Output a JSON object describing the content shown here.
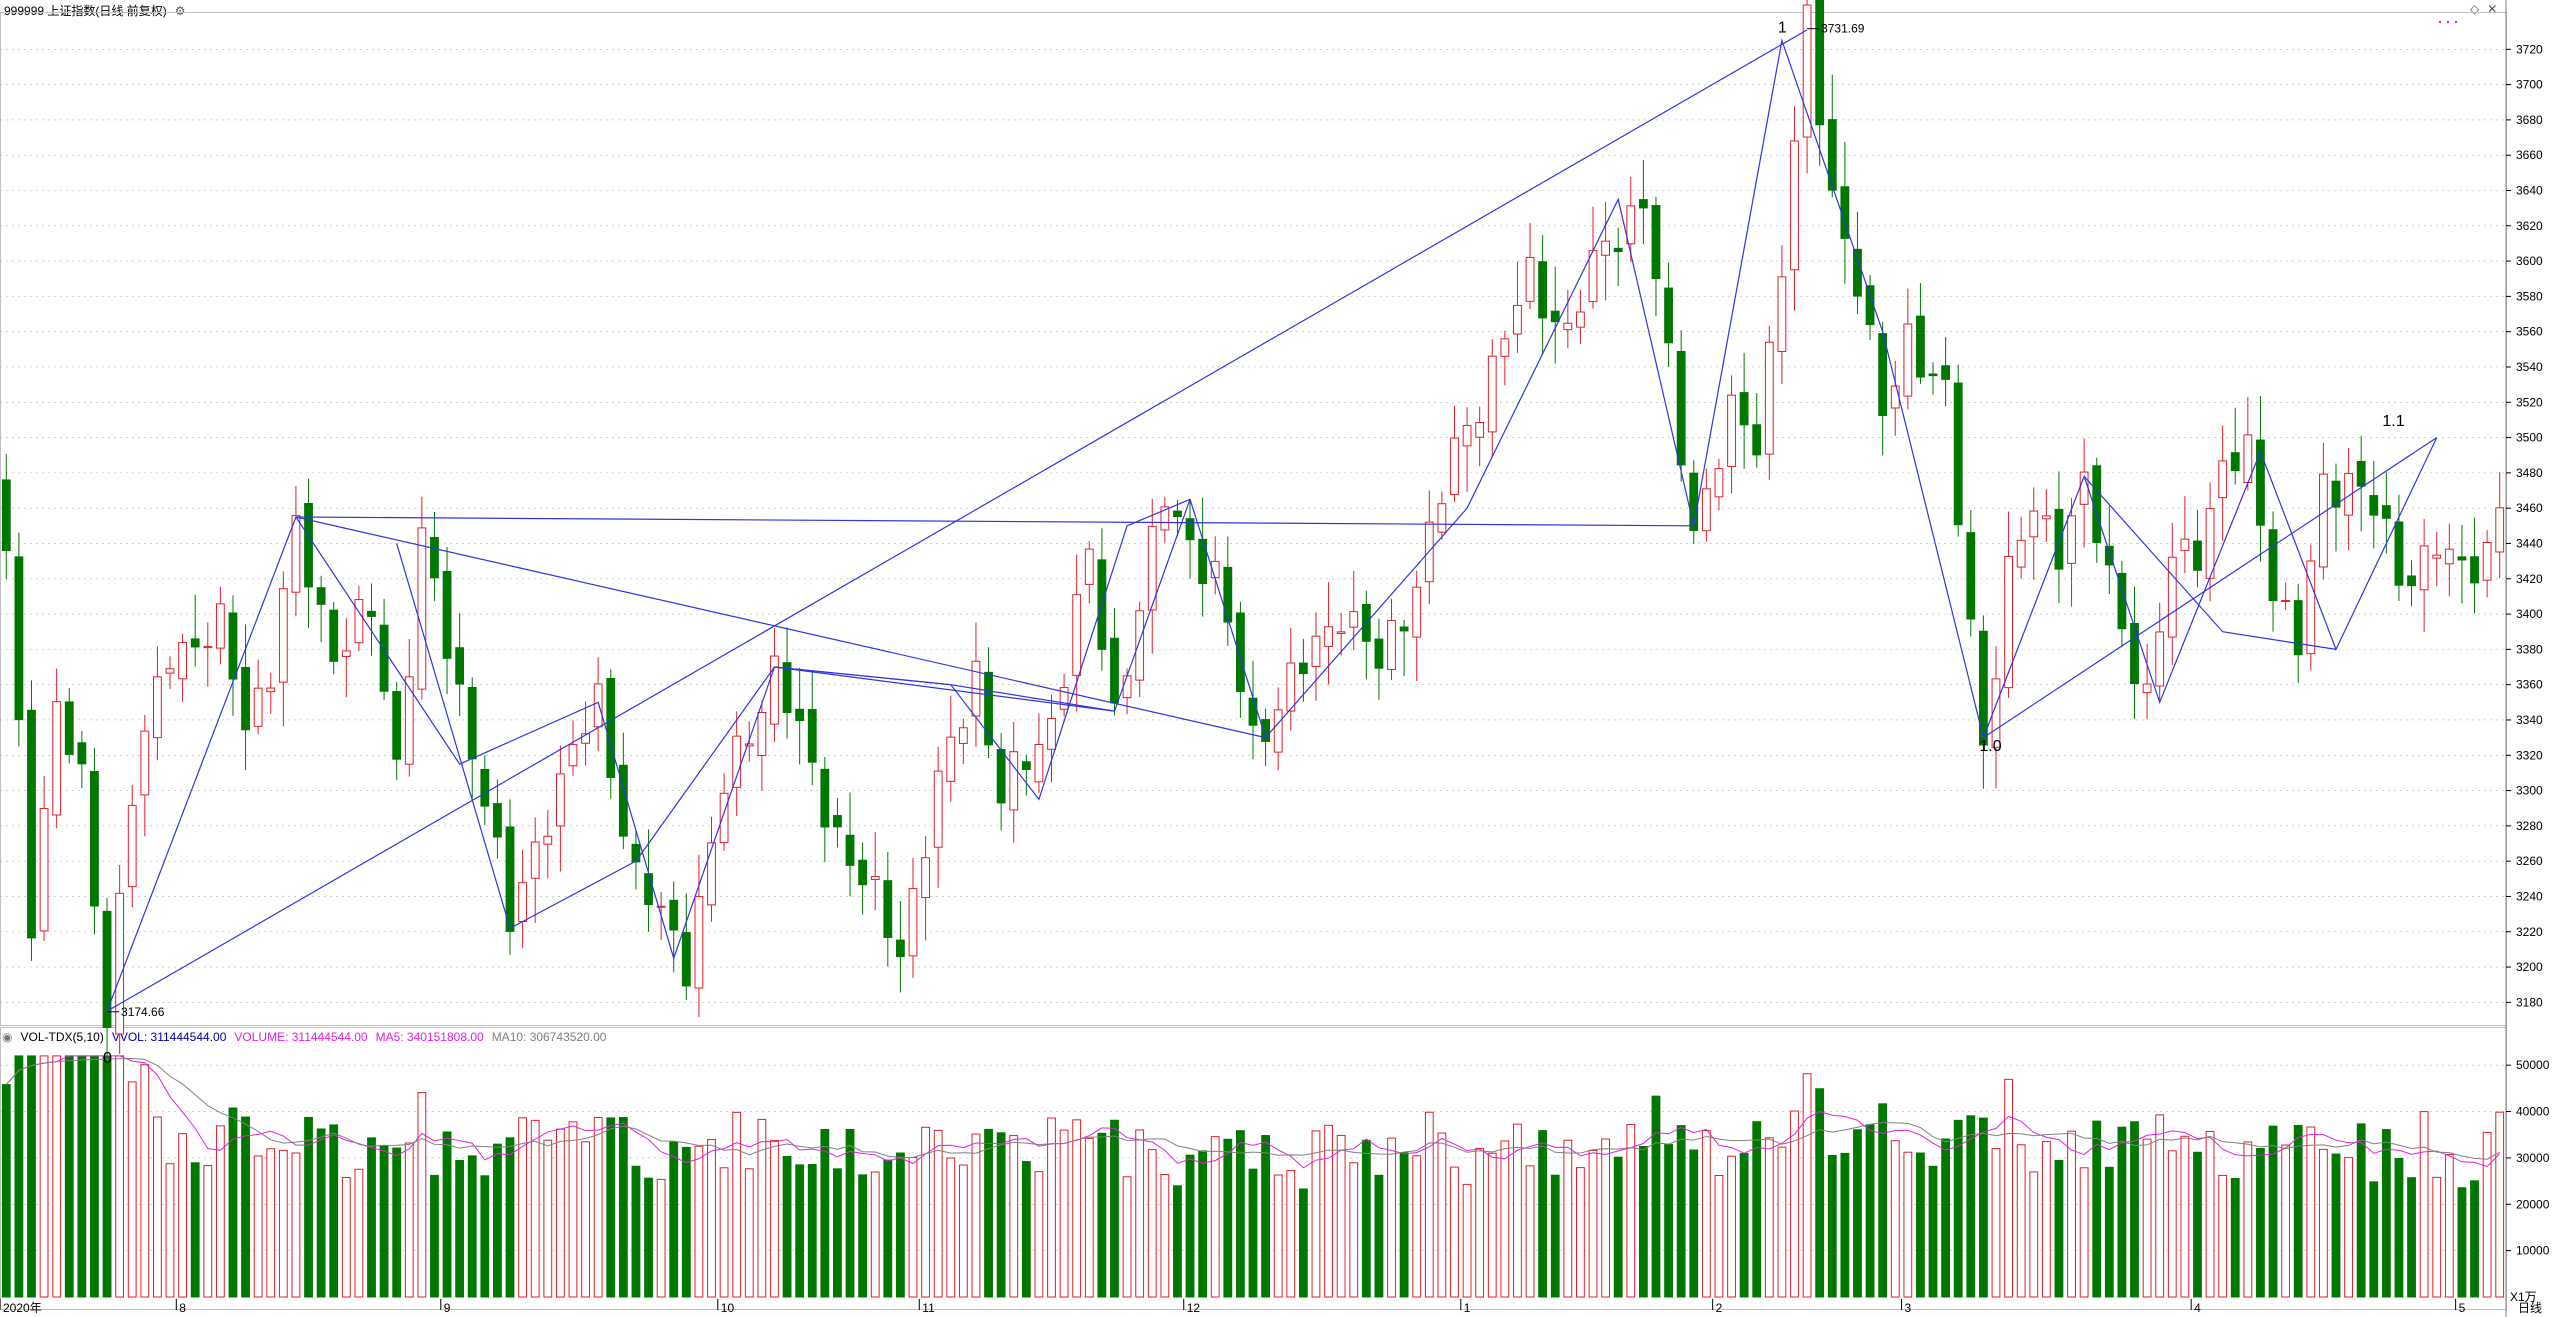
{
  "header": {
    "title": "999999 上证指数(日线 前复权)",
    "settings_icon": "circle-gear-icon"
  },
  "volume_header": {
    "indicator": "VOL-TDX(5,10)",
    "vvol": "VVOL: 311444544.00",
    "volume": "VOLUME: 311444544.00",
    "ma5": "MA5: 340151808.00",
    "ma10": "MA10: 306743520.00"
  },
  "colors": {
    "up": "#e0202a",
    "down": "#007800",
    "wave": "#2f36e0",
    "ma5": "#e020e0",
    "ma10": "#808080",
    "vvol": "#0000a0",
    "grid": "#b8b8b8"
  },
  "price_axis_labels": [
    "3720",
    "3700",
    "3680",
    "3660",
    "3640",
    "3620",
    "3600",
    "3580",
    "3560",
    "3540",
    "3520",
    "3500",
    "3480",
    "3460",
    "3440",
    "3420",
    "3400",
    "3380",
    "3360",
    "3340",
    "3320",
    "3300",
    "3280",
    "3260",
    "3240",
    "3220",
    "3200",
    "3180"
  ],
  "volume_axis_labels": [
    "50000",
    "40000",
    "30000",
    "20000",
    "10000"
  ],
  "volume_unit": "X1万",
  "x_labels": [
    {
      "label": "2020年",
      "i": 0
    },
    {
      "label": "8",
      "i": 14
    },
    {
      "label": "9",
      "i": 35
    },
    {
      "label": "10",
      "i": 57
    },
    {
      "label": "11",
      "i": 73
    },
    {
      "label": "12",
      "i": 94
    },
    {
      "label": "1",
      "i": 116
    },
    {
      "label": "2",
      "i": 136
    },
    {
      "label": "3",
      "i": 151
    },
    {
      "label": "4",
      "i": 174
    },
    {
      "label": "5",
      "i": 195
    }
  ],
  "period_label": "日线",
  "wave_labels": [
    {
      "text": "0",
      "i": 8,
      "price": 3158
    },
    {
      "text": "1",
      "i": 141,
      "price": 3725
    },
    {
      "text": "1.0",
      "i": 157,
      "price": 3318
    },
    {
      "text": "1.1",
      "i": 189,
      "price": 3502
    }
  ],
  "extreme_labels": [
    {
      "text": "3174.66",
      "i": 8,
      "price": 3174.66
    },
    {
      "text": "3731.69",
      "i": 143,
      "price": 3731.69
    }
  ],
  "chart_data": {
    "type": "candlestick",
    "title": "999999 上证指数(日线 前复权)",
    "ylim": [
      3170,
      3740
    ],
    "n": 199,
    "anchors": [
      [
        0,
        3430
      ],
      [
        2,
        3230
      ],
      [
        4,
        3350
      ],
      [
        6,
        3300
      ],
      [
        8,
        3175
      ],
      [
        10,
        3300
      ],
      [
        13,
        3380
      ],
      [
        17,
        3390
      ],
      [
        19,
        3340
      ],
      [
        21,
        3370
      ],
      [
        23,
        3445
      ],
      [
        26,
        3380
      ],
      [
        29,
        3400
      ],
      [
        31,
        3315
      ],
      [
        33,
        3443
      ],
      [
        35,
        3380
      ],
      [
        38,
        3300
      ],
      [
        40,
        3222
      ],
      [
        43,
        3290
      ],
      [
        47,
        3350
      ],
      [
        50,
        3250
      ],
      [
        54,
        3205
      ],
      [
        57,
        3300
      ],
      [
        61,
        3370
      ],
      [
        64,
        3310
      ],
      [
        67,
        3260
      ],
      [
        71,
        3212
      ],
      [
        74,
        3300
      ],
      [
        77,
        3370
      ],
      [
        79,
        3295
      ],
      [
        83,
        3340
      ],
      [
        86,
        3430
      ],
      [
        88,
        3345
      ],
      [
        92,
        3465
      ],
      [
        96,
        3420
      ],
      [
        99,
        3330
      ],
      [
        103,
        3370
      ],
      [
        106,
        3405
      ],
      [
        109,
        3370
      ],
      [
        112,
        3420
      ],
      [
        115,
        3490
      ],
      [
        118,
        3540
      ],
      [
        121,
        3590
      ],
      [
        124,
        3560
      ],
      [
        127,
        3610
      ],
      [
        130,
        3635
      ],
      [
        132,
        3540
      ],
      [
        134,
        3450
      ],
      [
        137,
        3510
      ],
      [
        139,
        3500
      ],
      [
        141,
        3600
      ],
      [
        143,
        3731
      ],
      [
        145,
        3640
      ],
      [
        147,
        3590
      ],
      [
        149,
        3510
      ],
      [
        151,
        3560
      ],
      [
        154,
        3520
      ],
      [
        157,
        3330
      ],
      [
        159,
        3420
      ],
      [
        161,
        3460
      ],
      [
        163,
        3440
      ],
      [
        165,
        3470
      ],
      [
        167,
        3420
      ],
      [
        170,
        3350
      ],
      [
        172,
        3430
      ],
      [
        174,
        3440
      ],
      [
        176,
        3480
      ],
      [
        178,
        3490
      ],
      [
        180,
        3420
      ],
      [
        182,
        3380
      ],
      [
        184,
        3470
      ],
      [
        186,
        3480
      ],
      [
        188,
        3460
      ],
      [
        190,
        3420
      ],
      [
        193,
        3440
      ],
      [
        195,
        3420
      ],
      [
        197,
        3440
      ],
      [
        198,
        3462
      ]
    ],
    "wave_lines": [
      [
        [
          8,
          3175
        ],
        [
          23,
          3455
        ],
        [
          36,
          3315
        ],
        [
          47,
          3350
        ],
        [
          53,
          3205
        ],
        [
          61,
          3370
        ],
        [
          75,
          3360
        ],
        [
          82,
          3295
        ],
        [
          89,
          3450
        ],
        [
          94,
          3465
        ],
        [
          100,
          3330
        ],
        [
          116,
          3460
        ],
        [
          128,
          3635
        ],
        [
          134,
          3450
        ],
        [
          141,
          3725
        ],
        [
          149,
          3560
        ],
        [
          157,
          3330
        ],
        [
          165,
          3478
        ],
        [
          171,
          3350
        ],
        [
          179,
          3492
        ],
        [
          185,
          3380
        ],
        [
          193,
          3500
        ]
      ],
      [
        [
          8,
          3175
        ],
        [
          143,
          3731
        ]
      ],
      [
        [
          23,
          3455
        ],
        [
          134,
          3450
        ]
      ],
      [
        [
          23,
          3455
        ],
        [
          100,
          3330
        ]
      ],
      [
        [
          31,
          3440
        ],
        [
          40,
          3222
        ],
        [
          50,
          3260
        ],
        [
          61,
          3370
        ],
        [
          75,
          3360
        ],
        [
          88,
          3345
        ],
        [
          94,
          3465
        ]
      ],
      [
        [
          61,
          3370
        ],
        [
          88,
          3345
        ]
      ],
      [
        [
          157,
          3330
        ],
        [
          193,
          3500
        ]
      ],
      [
        [
          165,
          3478
        ],
        [
          176,
          3390
        ],
        [
          185,
          3380
        ]
      ]
    ]
  }
}
